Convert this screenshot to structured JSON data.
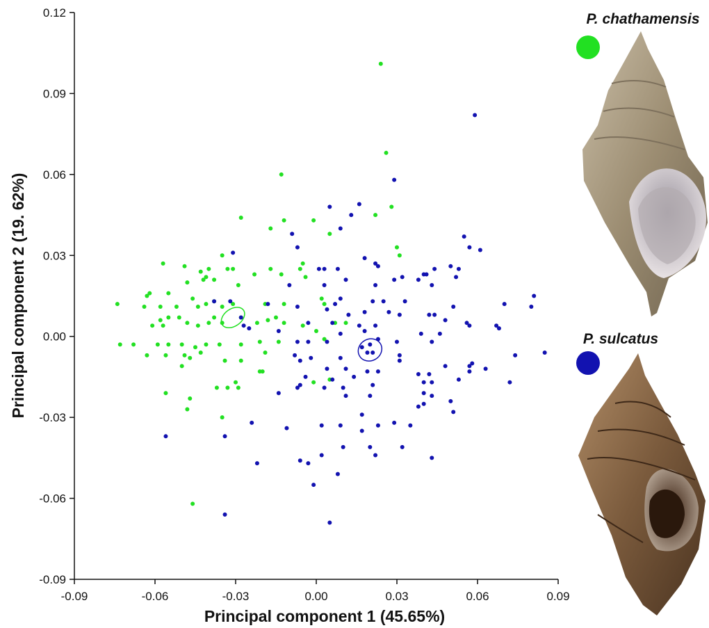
{
  "chart_data": {
    "type": "scatter",
    "x_label": "Principal component 1 (45.65%)",
    "y_label": "Principal component 2 (19. 62%)",
    "xlim": [
      -0.09,
      0.09
    ],
    "ylim": [
      -0.09,
      0.12
    ],
    "xticks": [
      -0.09,
      -0.06,
      -0.03,
      {
        "value": 0,
        "label": "0.00"
      },
      0.03,
      0.06,
      0.09
    ],
    "yticks": [
      -0.09,
      -0.06,
      -0.03,
      {
        "value": 0,
        "label": "0.00"
      },
      0.03,
      0.06,
      0.09,
      0.12
    ],
    "series": [
      {
        "name": "P. chathamensis",
        "color": "#22e022",
        "ellipse": {
          "cx": -0.031,
          "cy": 0.007,
          "rx": 0.0048,
          "ry": 0.0032,
          "angle": -35
        },
        "x": [
          0.024,
          0.026,
          -0.013,
          0.022,
          0.028,
          -0.028,
          -0.012,
          -0.017,
          -0.001,
          0.005,
          -0.057,
          -0.049,
          0.03,
          0.031,
          -0.035,
          -0.033,
          -0.031,
          -0.023,
          -0.017,
          -0.013,
          -0.005,
          -0.006,
          -0.004,
          -0.043,
          -0.04,
          -0.041,
          -0.042,
          -0.048,
          -0.038,
          -0.062,
          -0.063,
          -0.055,
          -0.074,
          -0.064,
          -0.058,
          -0.052,
          -0.046,
          -0.044,
          -0.041,
          -0.038,
          -0.035,
          -0.031,
          -0.029,
          -0.019,
          -0.012,
          0.002,
          0.003,
          -0.058,
          -0.055,
          -0.051,
          -0.048,
          -0.044,
          -0.04,
          -0.038,
          -0.035,
          -0.028,
          -0.022,
          -0.018,
          -0.015,
          -0.012,
          -0.005,
          0,
          -0.061,
          -0.057,
          -0.073,
          -0.068,
          -0.059,
          -0.055,
          -0.05,
          -0.045,
          -0.041,
          -0.036,
          -0.028,
          -0.021,
          -0.014,
          0.003,
          -0.063,
          -0.056,
          -0.049,
          -0.047,
          -0.043,
          -0.034,
          -0.028,
          -0.019,
          -0.021,
          -0.02,
          -0.05,
          -0.03,
          -0.001,
          -0.037,
          -0.033,
          -0.029,
          -0.056,
          -0.047,
          -0.048,
          -0.035,
          -0.046,
          0.005,
          0.007,
          0.011
        ],
        "values": [
          0.101,
          0.068,
          0.06,
          0.045,
          0.048,
          0.044,
          0.043,
          0.04,
          0.043,
          0.038,
          0.027,
          0.026,
          0.033,
          0.03,
          0.03,
          0.025,
          0.025,
          0.023,
          0.025,
          0.023,
          0.027,
          0.025,
          0.022,
          0.024,
          0.025,
          0.022,
          0.021,
          0.02,
          0.021,
          0.016,
          0.015,
          0.016,
          0.012,
          0.011,
          0.011,
          0.011,
          0.014,
          0.011,
          0.012,
          0.013,
          0.011,
          0.012,
          0.019,
          0.012,
          0.012,
          0.014,
          0.012,
          0.006,
          0.007,
          0.007,
          0.005,
          0.004,
          0.005,
          0.007,
          0.005,
          0.007,
          0.005,
          0.006,
          0.007,
          0.005,
          0.004,
          0.002,
          0.004,
          0.004,
          -0.003,
          -0.003,
          -0.003,
          -0.003,
          -0.003,
          -0.004,
          -0.003,
          -0.003,
          -0.003,
          -0.002,
          -0.002,
          -0.001,
          -0.007,
          -0.007,
          -0.007,
          -0.008,
          -0.006,
          -0.009,
          -0.009,
          -0.006,
          -0.013,
          -0.013,
          -0.011,
          -0.017,
          -0.017,
          -0.019,
          -0.019,
          -0.019,
          -0.021,
          -0.023,
          -0.027,
          -0.03,
          -0.062,
          -0.016,
          0.005,
          0.005
        ]
      },
      {
        "name": "P. sulcatus",
        "color": "#1212b0",
        "ellipse": {
          "cx": 0.02,
          "cy": -0.005,
          "rx": 0.0045,
          "ry": 0.004,
          "angle": -30
        },
        "x": [
          0.059,
          0.029,
          0.005,
          0.016,
          0.013,
          0.009,
          -0.009,
          -0.007,
          0.055,
          0.057,
          0.061,
          -0.031,
          0.018,
          0.023,
          0.022,
          0.001,
          0.003,
          0.008,
          0.05,
          0.044,
          0.04,
          0.041,
          0.053,
          0.052,
          0.011,
          0.029,
          0.032,
          0.038,
          -0.01,
          0.003,
          0.022,
          0.043,
          0.081,
          0.009,
          -0.038,
          -0.032,
          -0.018,
          0.007,
          0.021,
          0.025,
          0.033,
          0.051,
          0.07,
          0.08,
          -0.007,
          0.004,
          0.012,
          0.018,
          0.027,
          0.031,
          0.042,
          0.044,
          -0.028,
          -0.027,
          -0.025,
          -0.003,
          0.006,
          0.016,
          0.022,
          0.048,
          0.056,
          0.057,
          0.068,
          0.067,
          -0.014,
          0.009,
          0.018,
          0.023,
          0.039,
          0.046,
          -0.007,
          -0.003,
          0.004,
          0.017,
          0.03,
          0.043,
          0.085,
          0.074,
          -0.008,
          -0.006,
          -0.002,
          0.009,
          0.02,
          0.019,
          0.021,
          0.031,
          0.031,
          0.048,
          0.057,
          0.058,
          0.063,
          0.057,
          0.004,
          0.011,
          0.014,
          0.019,
          0.023,
          0.038,
          0.042,
          -0.004,
          0.006,
          0.021,
          0.04,
          0.043,
          0.053,
          0.072,
          -0.007,
          -0.006,
          0.003,
          0.01,
          -0.014,
          0.011,
          0.02,
          0.04,
          0.043,
          0.04,
          0.038,
          0.05,
          0.017,
          0.051,
          -0.024,
          -0.011,
          0.002,
          0.009,
          0.023,
          0.029,
          0.035,
          -0.056,
          -0.034,
          0.017,
          0.02,
          0.022,
          0.032,
          0.01,
          0.043,
          0.002,
          -0.006,
          -0.003,
          -0.022,
          0.008,
          -0.001,
          -0.034,
          0.005
        ],
        "values": [
          0.082,
          0.058,
          0.048,
          0.049,
          0.045,
          0.04,
          0.038,
          0.033,
          0.037,
          0.033,
          0.032,
          0.031,
          0.029,
          0.026,
          0.027,
          0.025,
          0.025,
          0.025,
          0.026,
          0.025,
          0.023,
          0.023,
          0.025,
          0.022,
          0.021,
          0.021,
          0.022,
          0.021,
          0.019,
          0.019,
          0.019,
          0.019,
          0.015,
          0.014,
          0.013,
          0.013,
          0.012,
          0.012,
          0.013,
          0.013,
          0.013,
          0.011,
          0.012,
          0.011,
          0.011,
          0.01,
          0.008,
          0.009,
          0.009,
          0.008,
          0.008,
          0.008,
          0.007,
          0.004,
          0.003,
          0.005,
          0.005,
          0.004,
          0.004,
          0.006,
          0.005,
          0.004,
          0.003,
          0.004,
          0.002,
          0.001,
          0.002,
          -0.001,
          0.001,
          0.001,
          -0.002,
          -0.002,
          -0.002,
          -0.004,
          -0.002,
          -0.002,
          -0.006,
          -0.007,
          -0.007,
          -0.009,
          -0.008,
          -0.008,
          -0.003,
          -0.006,
          -0.006,
          -0.007,
          -0.009,
          -0.011,
          -0.011,
          -0.01,
          -0.012,
          -0.013,
          -0.012,
          -0.012,
          -0.015,
          -0.013,
          -0.013,
          -0.014,
          -0.014,
          -0.015,
          -0.016,
          -0.018,
          -0.017,
          -0.017,
          -0.016,
          -0.017,
          -0.019,
          -0.018,
          -0.019,
          -0.019,
          -0.021,
          -0.022,
          -0.022,
          -0.021,
          -0.022,
          -0.025,
          -0.026,
          -0.024,
          -0.029,
          -0.028,
          -0.032,
          -0.034,
          -0.033,
          -0.033,
          -0.033,
          -0.032,
          -0.033,
          -0.037,
          -0.037,
          -0.035,
          -0.041,
          -0.044,
          -0.041,
          -0.041,
          -0.045,
          -0.044,
          -0.046,
          -0.047,
          -0.047,
          -0.051,
          -0.055,
          -0.066,
          -0.069
        ]
      }
    ]
  }
}
